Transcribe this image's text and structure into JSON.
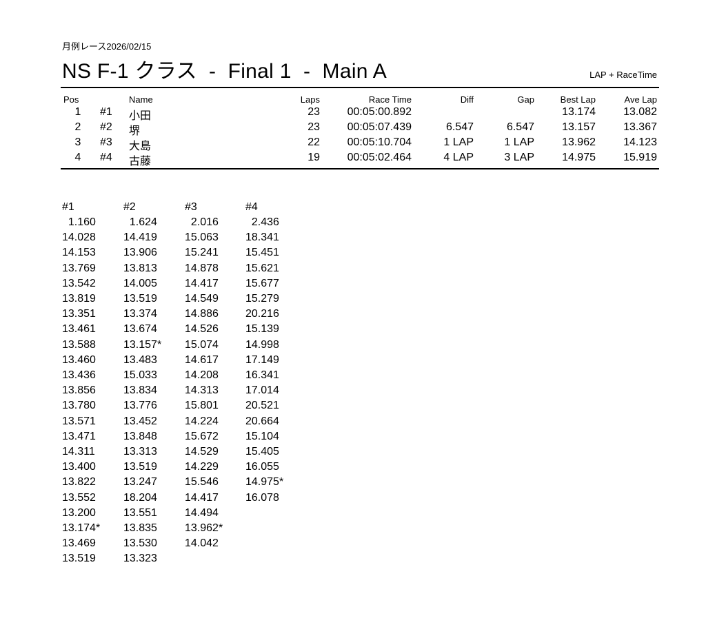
{
  "header": {
    "subtitle": "月例レース2026/02/15",
    "title": "NS F-1 クラス  -  Final 1  -  Main A",
    "mode": "LAP + RaceTime"
  },
  "results": {
    "columns": [
      "Pos",
      "Name",
      "Laps",
      "Race Time",
      "Diff",
      "Gap",
      "Best Lap",
      "Ave Lap"
    ],
    "rows": [
      {
        "pos": "1",
        "num": "#1",
        "name": "小田",
        "laps": "23",
        "race_time": "00:05:00.892",
        "diff": "",
        "gap": "",
        "best_lap": "13.174",
        "ave_lap": "13.082"
      },
      {
        "pos": "2",
        "num": "#2",
        "name": "堺",
        "laps": "23",
        "race_time": "00:05:07.439",
        "diff": "6.547",
        "gap": "6.547",
        "best_lap": "13.157",
        "ave_lap": "13.367"
      },
      {
        "pos": "3",
        "num": "#3",
        "name": "大島",
        "laps": "22",
        "race_time": "00:05:10.704",
        "diff": "1 LAP",
        "gap": "1 LAP",
        "best_lap": "13.962",
        "ave_lap": "14.123"
      },
      {
        "pos": "4",
        "num": "#4",
        "name": "古藤",
        "laps": "19",
        "race_time": "00:05:02.464",
        "diff": "4 LAP",
        "gap": "3 LAP",
        "best_lap": "14.975",
        "ave_lap": "15.919"
      }
    ]
  },
  "laps": {
    "cars": [
      {
        "label": "#1",
        "times": [
          "1.160",
          "14.028",
          "14.153",
          "13.769",
          "13.542",
          "13.819",
          "13.351",
          "13.461",
          "13.588",
          "13.460",
          "13.436",
          "13.856",
          "13.780",
          "13.571",
          "13.471",
          "14.311",
          "13.400",
          "13.822",
          "13.552",
          "13.200",
          "13.174*",
          "13.469",
          "13.519"
        ]
      },
      {
        "label": "#2",
        "times": [
          "1.624",
          "14.419",
          "13.906",
          "13.813",
          "14.005",
          "13.519",
          "13.374",
          "13.674",
          "13.157*",
          "13.483",
          "15.033",
          "13.834",
          "13.776",
          "13.452",
          "13.848",
          "13.313",
          "13.519",
          "13.247",
          "18.204",
          "13.551",
          "13.835",
          "13.530",
          "13.323"
        ]
      },
      {
        "label": "#3",
        "times": [
          "2.016",
          "15.063",
          "15.241",
          "14.878",
          "14.417",
          "14.549",
          "14.886",
          "14.526",
          "15.074",
          "14.617",
          "14.208",
          "14.313",
          "15.801",
          "14.224",
          "15.672",
          "14.529",
          "14.229",
          "15.546",
          "14.417",
          "14.494",
          "13.962*",
          "14.042"
        ]
      },
      {
        "label": "#4",
        "times": [
          "2.436",
          "18.341",
          "15.451",
          "15.621",
          "15.677",
          "15.279",
          "20.216",
          "15.139",
          "14.998",
          "17.149",
          "16.341",
          "17.014",
          "20.521",
          "20.664",
          "15.104",
          "15.405",
          "16.055",
          "14.975*",
          "16.078"
        ]
      }
    ]
  }
}
